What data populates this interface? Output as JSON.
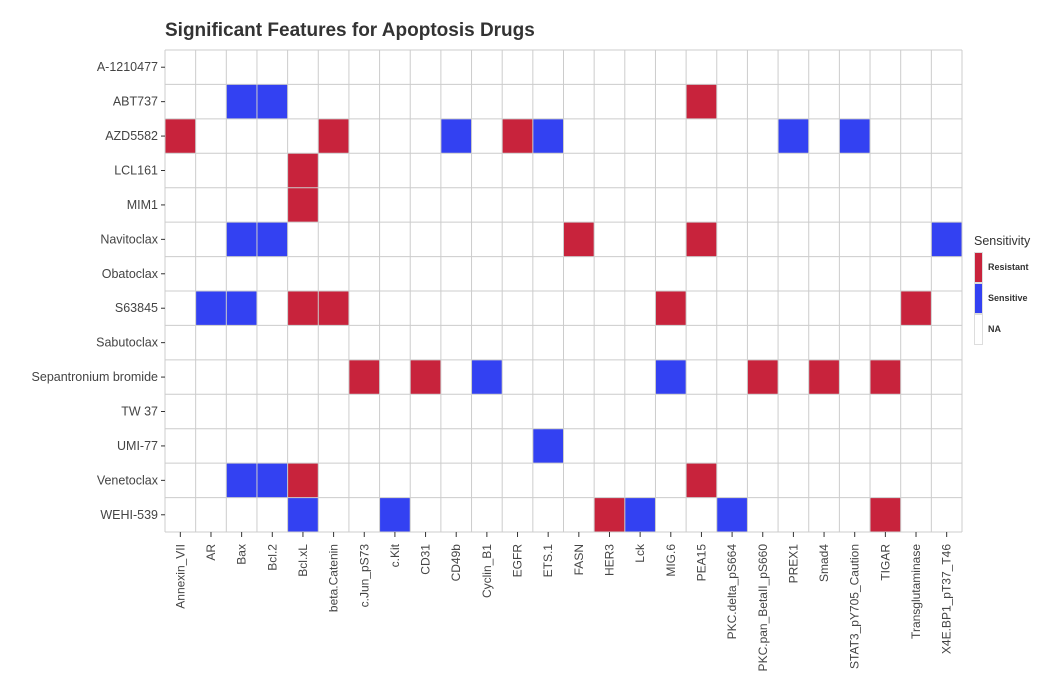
{
  "chart_data": {
    "type": "heatmap",
    "title": "Significant Features for Apoptosis Drugs",
    "xlabel": "",
    "ylabel": "",
    "x_categories": [
      "Annexin_VII",
      "AR",
      "Bax",
      "Bcl.2",
      "Bcl.xL",
      "beta.Catenin",
      "c.Jun_pS73",
      "c.Kit",
      "CD31",
      "CD49b",
      "Cyclin_B1",
      "EGFR",
      "ETS.1",
      "FASN",
      "HER3",
      "Lck",
      "MIG.6",
      "PEA15",
      "PKC.delta_pS664",
      "PKC.pan_BetaII_pS660",
      "PREX1",
      "Smad4",
      "STAT3_pY705_Caution",
      "TIGAR",
      "Transglutaminase",
      "X4E.BP1_pT37_T46"
    ],
    "y_categories": [
      "A-1210477",
      "ABT737",
      "AZD5582",
      "LCL161",
      "MIM1",
      "Navitoclax",
      "Obatoclax",
      "S63845",
      "Sabutoclax",
      "Sepantronium bromide",
      "TW 37",
      "UMI-77",
      "Venetoclax",
      "WEHI-539"
    ],
    "cells": [
      {
        "y": "ABT737",
        "x": "Bax",
        "value": "Sensitive"
      },
      {
        "y": "ABT737",
        "x": "Bcl.2",
        "value": "Sensitive"
      },
      {
        "y": "ABT737",
        "x": "PEA15",
        "value": "Resistant"
      },
      {
        "y": "AZD5582",
        "x": "Annexin_VII",
        "value": "Resistant"
      },
      {
        "y": "AZD5582",
        "x": "beta.Catenin",
        "value": "Resistant"
      },
      {
        "y": "AZD5582",
        "x": "CD49b",
        "value": "Sensitive"
      },
      {
        "y": "AZD5582",
        "x": "EGFR",
        "value": "Resistant"
      },
      {
        "y": "AZD5582",
        "x": "ETS.1",
        "value": "Sensitive"
      },
      {
        "y": "AZD5582",
        "x": "PREX1",
        "value": "Sensitive"
      },
      {
        "y": "AZD5582",
        "x": "STAT3_pY705_Caution",
        "value": "Sensitive"
      },
      {
        "y": "LCL161",
        "x": "Bcl.xL",
        "value": "Resistant"
      },
      {
        "y": "MIM1",
        "x": "Bcl.xL",
        "value": "Resistant"
      },
      {
        "y": "Navitoclax",
        "x": "Bax",
        "value": "Sensitive"
      },
      {
        "y": "Navitoclax",
        "x": "Bcl.2",
        "value": "Sensitive"
      },
      {
        "y": "Navitoclax",
        "x": "FASN",
        "value": "Resistant"
      },
      {
        "y": "Navitoclax",
        "x": "PEA15",
        "value": "Resistant"
      },
      {
        "y": "Navitoclax",
        "x": "X4E.BP1_pT37_T46",
        "value": "Sensitive"
      },
      {
        "y": "S63845",
        "x": "AR",
        "value": "Sensitive"
      },
      {
        "y": "S63845",
        "x": "Bax",
        "value": "Sensitive"
      },
      {
        "y": "S63845",
        "x": "Bcl.xL",
        "value": "Resistant"
      },
      {
        "y": "S63845",
        "x": "beta.Catenin",
        "value": "Resistant"
      },
      {
        "y": "S63845",
        "x": "MIG.6",
        "value": "Resistant"
      },
      {
        "y": "S63845",
        "x": "Transglutaminase",
        "value": "Resistant"
      },
      {
        "y": "Sepantronium bromide",
        "x": "c.Jun_pS73",
        "value": "Resistant"
      },
      {
        "y": "Sepantronium bromide",
        "x": "CD31",
        "value": "Resistant"
      },
      {
        "y": "Sepantronium bromide",
        "x": "Cyclin_B1",
        "value": "Sensitive"
      },
      {
        "y": "Sepantronium bromide",
        "x": "MIG.6",
        "value": "Sensitive"
      },
      {
        "y": "Sepantronium bromide",
        "x": "PKC.pan_BetaII_pS660",
        "value": "Resistant"
      },
      {
        "y": "Sepantronium bromide",
        "x": "Smad4",
        "value": "Resistant"
      },
      {
        "y": "Sepantronium bromide",
        "x": "TIGAR",
        "value": "Resistant"
      },
      {
        "y": "UMI-77",
        "x": "ETS.1",
        "value": "Sensitive"
      },
      {
        "y": "Venetoclax",
        "x": "Bax",
        "value": "Sensitive"
      },
      {
        "y": "Venetoclax",
        "x": "Bcl.2",
        "value": "Sensitive"
      },
      {
        "y": "Venetoclax",
        "x": "Bcl.xL",
        "value": "Resistant"
      },
      {
        "y": "Venetoclax",
        "x": "PEA15",
        "value": "Resistant"
      },
      {
        "y": "WEHI-539",
        "x": "Bcl.xL",
        "value": "Sensitive"
      },
      {
        "y": "WEHI-539",
        "x": "c.Kit",
        "value": "Sensitive"
      },
      {
        "y": "WEHI-539",
        "x": "HER3",
        "value": "Resistant"
      },
      {
        "y": "WEHI-539",
        "x": "Lck",
        "value": "Sensitive"
      },
      {
        "y": "WEHI-539",
        "x": "PKC.delta_pS664",
        "value": "Sensitive"
      },
      {
        "y": "WEHI-539",
        "x": "TIGAR",
        "value": "Resistant"
      }
    ],
    "legend": {
      "title": "Sensitivity",
      "position": "right",
      "items": [
        {
          "label": "Resistant",
          "color": "#c8233c"
        },
        {
          "label": "Sensitive",
          "color": "#3341f2"
        },
        {
          "label": "NA",
          "color": "#ffffff"
        }
      ]
    },
    "grid": true,
    "grid_color": "#cccccc"
  }
}
